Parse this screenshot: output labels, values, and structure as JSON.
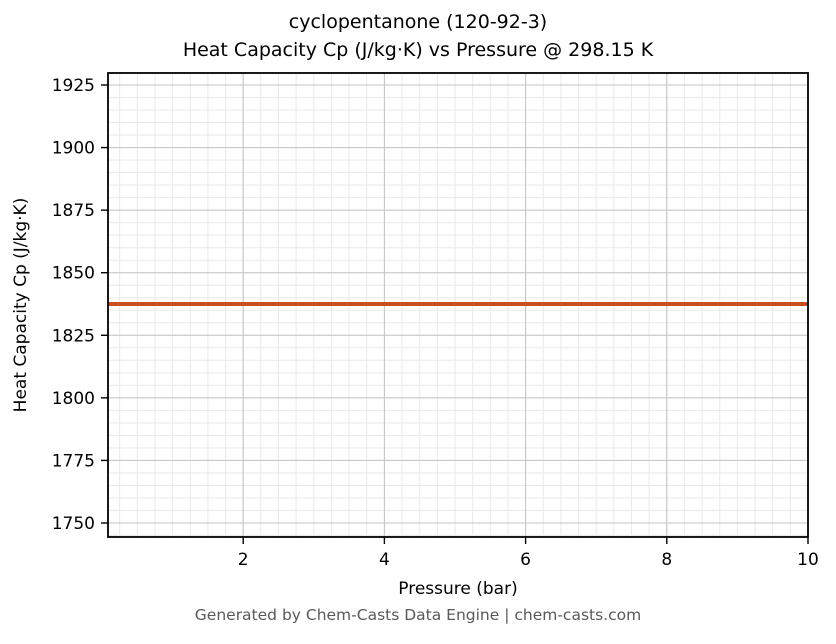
{
  "chart_data": {
    "type": "line",
    "title": "cyclopentanone (120-92-3)",
    "subtitle": "Heat Capacity Cp (J/kg·K) vs Pressure @ 298.15 K",
    "xlabel": "Pressure (bar)",
    "ylabel": "Heat Capacity Cp (J/kg·K)",
    "xlim": [
      0.085,
      10
    ],
    "ylim": [
      1744.4,
      1929.8
    ],
    "x_ticks": [
      2,
      4,
      6,
      8,
      10
    ],
    "y_ticks": [
      1750,
      1775,
      1800,
      1825,
      1850,
      1875,
      1900,
      1925
    ],
    "grid": {
      "major": true,
      "minor": true,
      "x_minor_step": 0.25,
      "y_minor_step": 5,
      "major_color": "#c3c3c3",
      "minor_color": "#e9e9e9"
    },
    "series": [
      {
        "name": "Heat Capacity Cp",
        "color": "#c9501e",
        "x": [
          0.085,
          10.0
        ],
        "values": [
          1837.5,
          1837.5
        ]
      }
    ],
    "legend": "none"
  },
  "footer": {
    "text": "Generated by Chem-Casts Data Engine | chem-casts.com"
  }
}
